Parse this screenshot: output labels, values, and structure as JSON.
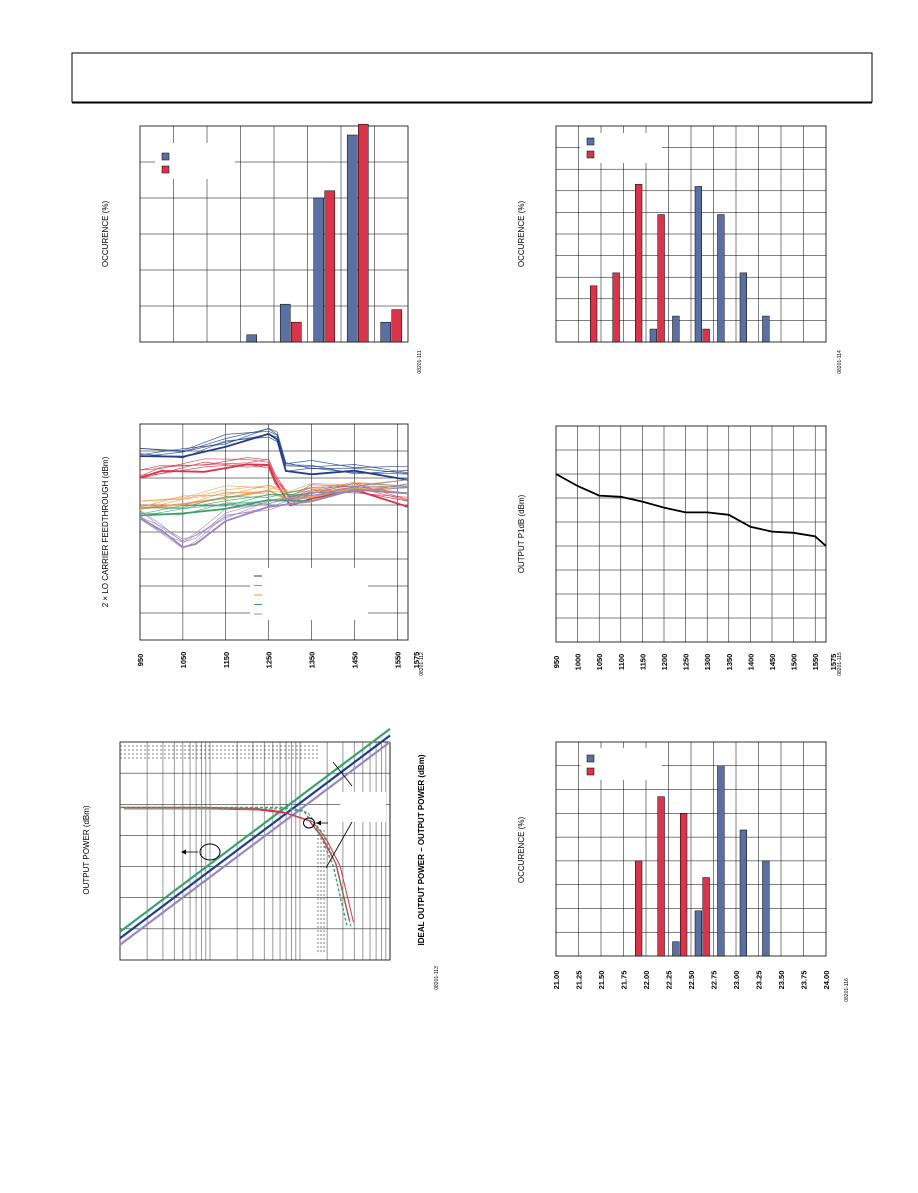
{
  "page": {
    "header_title": ""
  },
  "colors": {
    "blue": "#5a70a3",
    "red": "#d8344a",
    "navy": "#1f3e8c",
    "orange": "#f29b4b",
    "green": "#3aa36b",
    "purple": "#9b86c2",
    "black": "#000000"
  },
  "chart_data": [
    {
      "id": "fig111",
      "type": "bar",
      "ylabel": "OCCURENCE (%)",
      "figure_id": "08201-111",
      "legend": "top-left",
      "grid": true,
      "series": [
        {
          "values": [
            0,
            0,
            0,
            0.4,
            2.1,
            8.0,
            11.5,
            1.1
          ]
        },
        {
          "values": [
            0,
            0,
            0,
            0,
            1.1,
            8.4,
            12.1,
            1.8
          ]
        }
      ],
      "ylim": [
        0,
        12
      ]
    },
    {
      "id": "fig112",
      "type": "line",
      "ylabel": "2 × LO CARRIER FEEDTHROUGH (dBm)",
      "figure_id": "08201-112",
      "xticks": [
        "950",
        "1050",
        "1150",
        "1250",
        "1350",
        "1450",
        "1550",
        "1575"
      ],
      "xlim": [
        950,
        1575
      ],
      "ylim": [
        0,
        8
      ],
      "legend": "bottom-center",
      "grid": true,
      "series": [
        {
          "color": "navy",
          "x": [
            950,
            1050,
            1150,
            1250,
            1270,
            1290,
            1350,
            1450,
            1575
          ],
          "y": [
            6.9,
            6.95,
            7.35,
            7.7,
            7.55,
            6.45,
            6.4,
            6.3,
            6.2
          ]
        },
        {
          "color": "red",
          "x": [
            950,
            1000,
            1100,
            1200,
            1250,
            1265,
            1300,
            1350,
            1450,
            1575
          ],
          "y": [
            6.1,
            6.3,
            6.5,
            6.55,
            6.55,
            6.0,
            5.2,
            5.5,
            5.6,
            5.2
          ]
        },
        {
          "color": "orange",
          "x": [
            950,
            1050,
            1150,
            1250,
            1300,
            1350,
            1450,
            1575
          ],
          "y": [
            4.95,
            5.2,
            5.45,
            5.6,
            5.4,
            5.55,
            5.65,
            5.7
          ]
        },
        {
          "color": "green",
          "x": [
            950,
            1050,
            1150,
            1250,
            1350,
            1450,
            1575
          ],
          "y": [
            4.7,
            4.85,
            5.05,
            5.25,
            5.4,
            5.6,
            5.7
          ]
        },
        {
          "color": "purple",
          "x": [
            950,
            1000,
            1050,
            1080,
            1150,
            1250,
            1350,
            1450,
            1575
          ],
          "y": [
            4.6,
            4.1,
            3.6,
            3.8,
            4.6,
            5.0,
            5.4,
            5.6,
            5.7
          ]
        }
      ]
    },
    {
      "id": "fig113",
      "type": "line",
      "ylabel": "OUTPUT POWER (dBm)",
      "y2label": "IDEAL OUTPUT POWER – OUTPUT POWER (dBm)",
      "figure_id": "08201-113",
      "xlim": [
        0,
        10
      ],
      "ylim": [
        0,
        10
      ],
      "grid": true,
      "series": [
        {
          "color": "green",
          "x": [
            0,
            10
          ],
          "y": [
            1.3,
            10.6
          ]
        },
        {
          "color": "navy",
          "x": [
            0,
            10
          ],
          "y": [
            1.0,
            10.3
          ]
        },
        {
          "color": "purple",
          "x": [
            0,
            10
          ],
          "y": [
            0.7,
            10.0
          ]
        },
        {
          "color": "red",
          "style": "curve",
          "x": [
            0,
            3,
            5,
            6,
            7,
            7.5,
            8,
            8.5
          ],
          "y": [
            7.0,
            7.0,
            6.95,
            6.8,
            6.4,
            5.6,
            4.4,
            1.8
          ]
        },
        {
          "color": "green",
          "style": "dashed",
          "x": [
            0,
            3,
            5,
            6,
            6.8,
            7.4,
            7.9,
            8.4
          ],
          "y": [
            7.0,
            7.0,
            7.0,
            7.0,
            6.85,
            5.8,
            4.3,
            1.6
          ]
        }
      ]
    },
    {
      "id": "fig114",
      "type": "bar",
      "ylabel": "OCCURENCE (%)",
      "figure_id": "08201-114",
      "legend": "top-left",
      "grid": true,
      "ylim": [
        0,
        10
      ],
      "series": [
        {
          "values": [
            0,
            0,
            0,
            0,
            0.6,
            1.2,
            7.2,
            5.9,
            3.2,
            1.2,
            0,
            0
          ]
        },
        {
          "values": [
            0,
            2.6,
            3.2,
            7.3,
            5.9,
            0,
            0.6,
            0,
            0,
            0,
            0,
            0
          ]
        }
      ]
    },
    {
      "id": "fig115",
      "type": "line",
      "ylabel": "OUTPUT P1dB (dBm)",
      "figure_id": "08201-115",
      "xticks": [
        "950",
        "1000",
        "1050",
        "1100",
        "1150",
        "1200",
        "1250",
        "1300",
        "1350",
        "1400",
        "1450",
        "1500",
        "1550",
        "1575"
      ],
      "xlim": [
        950,
        1575
      ],
      "ylim": [
        0,
        9
      ],
      "grid": true,
      "series": [
        {
          "color": "black",
          "x": [
            950,
            1000,
            1050,
            1100,
            1150,
            1200,
            1250,
            1300,
            1350,
            1400,
            1450,
            1500,
            1550,
            1575
          ],
          "y": [
            7.0,
            6.5,
            6.1,
            6.05,
            5.85,
            5.6,
            5.4,
            5.4,
            5.3,
            4.8,
            4.6,
            4.55,
            4.4,
            4.0
          ]
        }
      ]
    },
    {
      "id": "fig116",
      "type": "bar",
      "ylabel": "OCCURENCE (%)",
      "figure_id": "08201-116",
      "legend": "top-left",
      "grid": true,
      "xticks": [
        "21.00",
        "21.25",
        "21.50",
        "21.75",
        "22.00",
        "22.25",
        "22.50",
        "22.75",
        "23.00",
        "23.25",
        "23.50",
        "23.75",
        "24.00"
      ],
      "ylim": [
        0,
        9
      ],
      "series": [
        {
          "values": [
            0,
            0,
            0,
            0,
            0,
            0.6,
            1.9,
            8.0,
            5.3,
            4.0,
            0,
            0
          ]
        },
        {
          "values": [
            0,
            0,
            0,
            4.0,
            6.7,
            6.0,
            3.3,
            0,
            0,
            0,
            0,
            0
          ]
        }
      ]
    }
  ]
}
